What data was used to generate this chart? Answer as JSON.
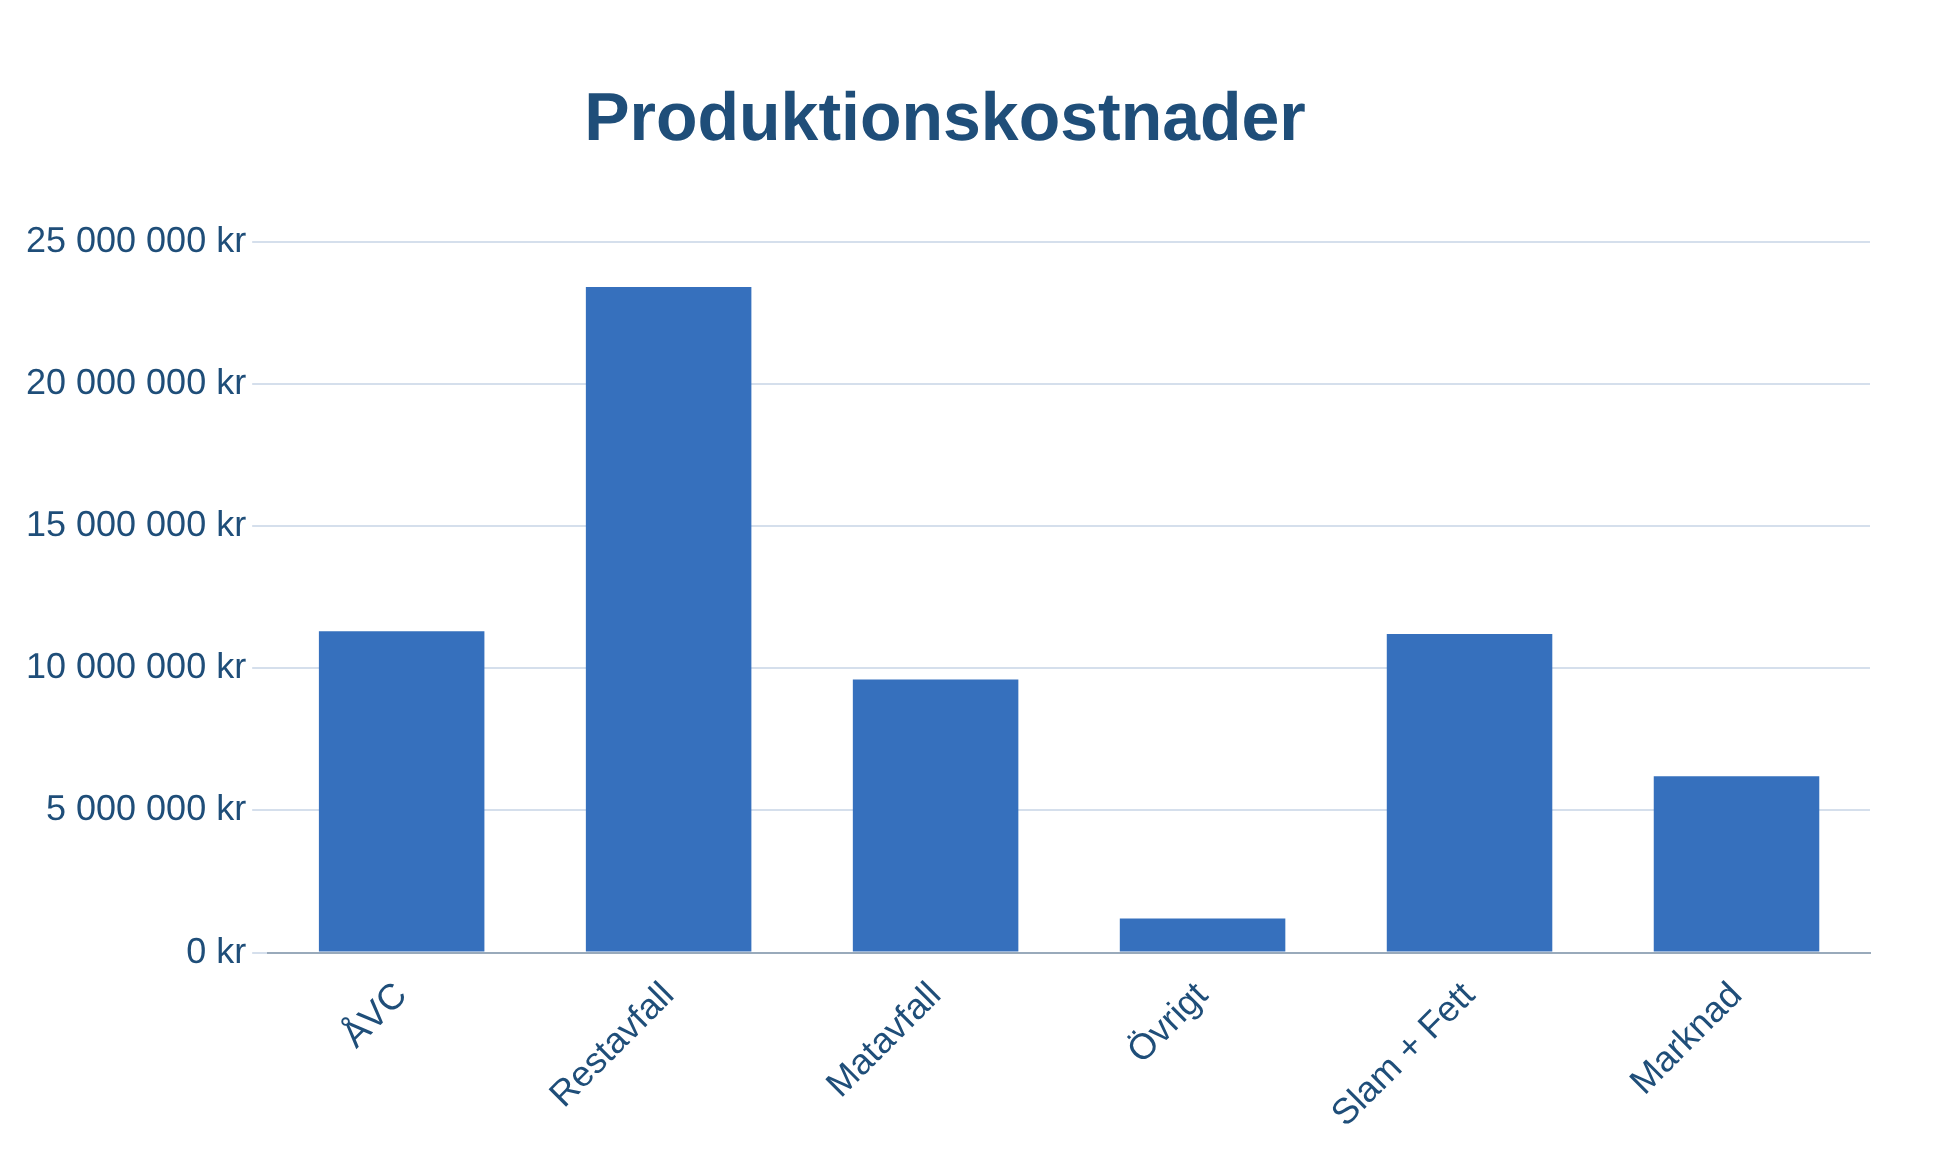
{
  "chart_data": {
    "type": "bar",
    "title": "Produktionskostnader",
    "categories": [
      "ÅVC",
      "Restavfall",
      "Matavfall",
      "Övrigt",
      "Slam + Fett",
      "Marknad"
    ],
    "values": [
      11300000,
      23400000,
      9600000,
      1200000,
      11200000,
      6200000
    ],
    "color": "#3670bd",
    "ylim": [
      0,
      25000000
    ],
    "yticks": [
      {
        "value": 0,
        "label": "0 kr"
      },
      {
        "value": 5000000,
        "label": "5 000 000 kr"
      },
      {
        "value": 10000000,
        "label": "10 000 000 kr"
      },
      {
        "value": 15000000,
        "label": "15 000 000 kr"
      },
      {
        "value": 20000000,
        "label": "20 000 000 kr"
      },
      {
        "value": 25000000,
        "label": "25 000 000 kr"
      }
    ],
    "grid": "y",
    "legend": false
  }
}
